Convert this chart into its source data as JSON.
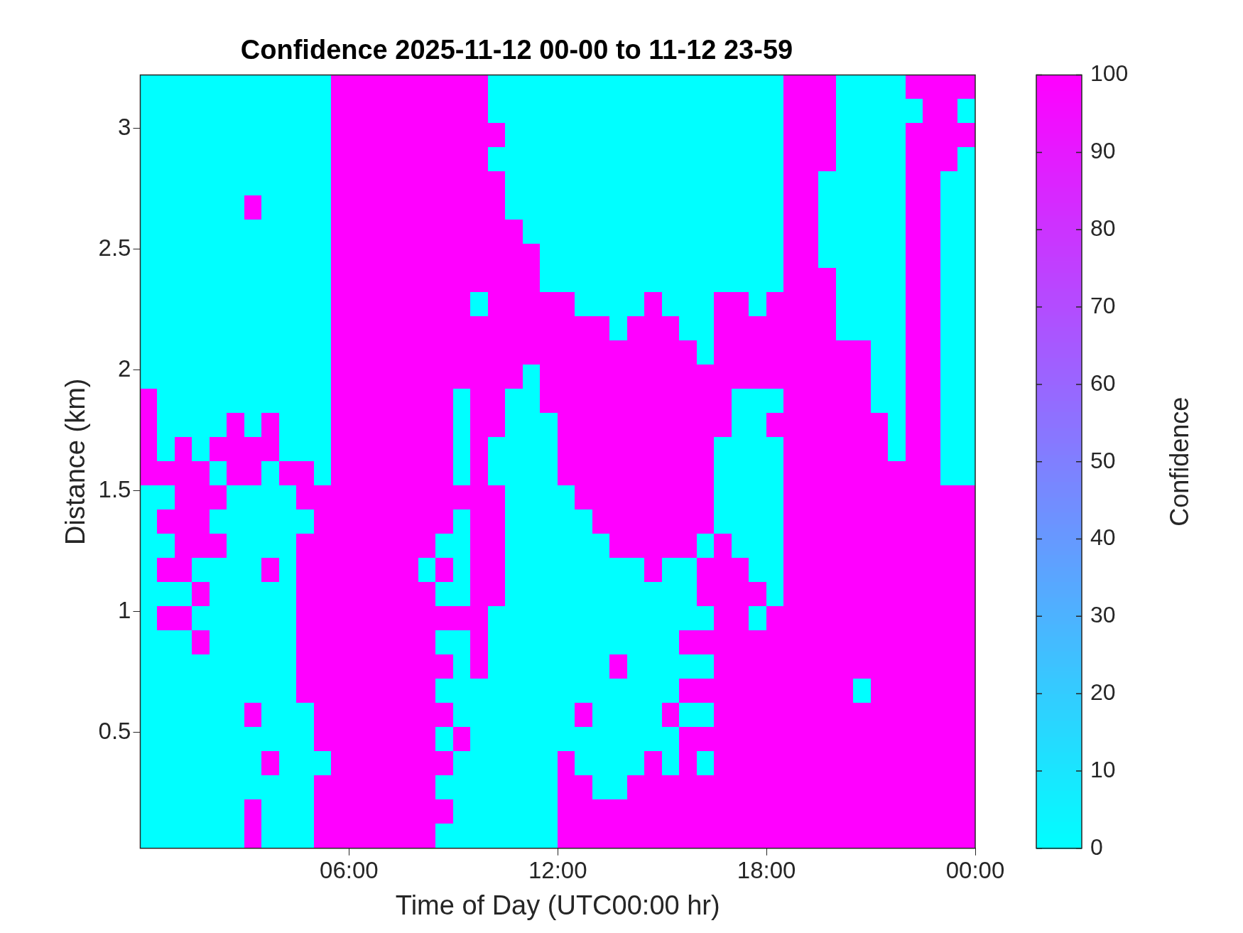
{
  "chart_data": {
    "type": "heatmap",
    "title": "Confidence 2025-11-12 00-00 to 11-12 23-59",
    "xlabel": "Time of Day (UTC00:00 hr)",
    "ylabel": "Distance (km)",
    "clabel": "Confidence",
    "x": [
      0.25,
      0.75,
      1.25,
      1.75,
      2.25,
      2.75,
      3.25,
      3.75,
      4.25,
      4.75,
      5.25,
      5.75,
      6.25,
      6.75,
      7.25,
      7.75,
      8.25,
      8.75,
      9.25,
      9.75,
      10.25,
      10.75,
      11.25,
      11.75,
      12.25,
      12.75,
      13.25,
      13.75,
      14.25,
      14.75,
      15.25,
      15.75,
      16.25,
      16.75,
      17.25,
      17.75,
      18.25,
      18.75,
      19.25,
      19.75,
      20.25,
      20.75,
      21.25,
      21.75,
      22.25,
      22.75,
      23.25,
      23.75
    ],
    "y": [
      3.17,
      3.07,
      2.97,
      2.87,
      2.77,
      2.67,
      2.57,
      2.47,
      2.37,
      2.27,
      2.17,
      2.07,
      1.97,
      1.87,
      1.77,
      1.67,
      1.57,
      1.47,
      1.37,
      1.27,
      1.17,
      1.07,
      0.97,
      0.87,
      0.77,
      0.67,
      0.57,
      0.47,
      0.37,
      0.27,
      0.17,
      0.07
    ],
    "xlim": [
      0,
      24
    ],
    "xticks": [
      {
        "value": 6,
        "label": "06:00"
      },
      {
        "value": 12,
        "label": "12:00"
      },
      {
        "value": 18,
        "label": "18:00"
      },
      {
        "value": 24,
        "label": "00:00"
      }
    ],
    "ylim": [
      0.02,
      3.22
    ],
    "yticks": [
      0.5,
      1,
      1.5,
      2,
      2.5,
      3
    ],
    "clim": [
      0,
      100
    ],
    "cticks": [
      0,
      10,
      20,
      30,
      40,
      50,
      60,
      70,
      80,
      90,
      100
    ],
    "cells": [
      [
        0,
        0,
        0,
        0,
        0,
        0,
        0,
        0,
        0,
        0,
        0,
        100,
        100,
        100,
        100,
        100,
        100,
        100,
        100,
        100,
        0,
        0,
        0,
        0,
        0,
        0,
        0,
        0,
        0,
        0,
        0,
        0,
        0,
        0,
        0,
        0,
        0,
        100,
        100,
        100,
        0,
        0,
        0,
        0,
        100,
        100,
        100,
        100
      ],
      [
        0,
        0,
        0,
        0,
        0,
        0,
        0,
        0,
        0,
        0,
        0,
        100,
        100,
        100,
        100,
        100,
        100,
        100,
        100,
        100,
        0,
        0,
        0,
        0,
        0,
        0,
        0,
        0,
        0,
        0,
        0,
        0,
        0,
        0,
        0,
        0,
        0,
        100,
        100,
        100,
        0,
        0,
        0,
        0,
        0,
        100,
        100,
        0
      ],
      [
        0,
        0,
        0,
        0,
        0,
        0,
        0,
        0,
        0,
        0,
        0,
        100,
        100,
        100,
        100,
        100,
        100,
        100,
        100,
        100,
        100,
        0,
        0,
        0,
        0,
        0,
        0,
        0,
        0,
        0,
        0,
        0,
        0,
        0,
        0,
        0,
        0,
        100,
        100,
        100,
        0,
        0,
        0,
        0,
        100,
        100,
        100,
        100
      ],
      [
        0,
        0,
        0,
        0,
        0,
        0,
        0,
        0,
        0,
        0,
        0,
        100,
        100,
        100,
        100,
        100,
        100,
        100,
        100,
        100,
        0,
        0,
        0,
        0,
        0,
        0,
        0,
        0,
        0,
        0,
        0,
        0,
        0,
        0,
        0,
        0,
        0,
        100,
        100,
        100,
        0,
        0,
        0,
        0,
        100,
        100,
        100,
        0
      ],
      [
        0,
        0,
        0,
        0,
        0,
        0,
        0,
        0,
        0,
        0,
        0,
        100,
        100,
        100,
        100,
        100,
        100,
        100,
        100,
        100,
        100,
        0,
        0,
        0,
        0,
        0,
        0,
        0,
        0,
        0,
        0,
        0,
        0,
        0,
        0,
        0,
        0,
        100,
        100,
        0,
        0,
        0,
        0,
        0,
        100,
        100,
        0,
        0
      ],
      [
        0,
        0,
        0,
        0,
        0,
        0,
        100,
        0,
        0,
        0,
        0,
        100,
        100,
        100,
        100,
        100,
        100,
        100,
        100,
        100,
        100,
        0,
        0,
        0,
        0,
        0,
        0,
        0,
        0,
        0,
        0,
        0,
        0,
        0,
        0,
        0,
        0,
        100,
        100,
        0,
        0,
        0,
        0,
        0,
        100,
        100,
        0,
        0
      ],
      [
        0,
        0,
        0,
        0,
        0,
        0,
        0,
        0,
        0,
        0,
        0,
        100,
        100,
        100,
        100,
        100,
        100,
        100,
        100,
        100,
        100,
        100,
        0,
        0,
        0,
        0,
        0,
        0,
        0,
        0,
        0,
        0,
        0,
        0,
        0,
        0,
        0,
        100,
        100,
        0,
        0,
        0,
        0,
        0,
        100,
        100,
        0,
        0
      ],
      [
        0,
        0,
        0,
        0,
        0,
        0,
        0,
        0,
        0,
        0,
        0,
        100,
        100,
        100,
        100,
        100,
        100,
        100,
        100,
        100,
        100,
        100,
        100,
        0,
        0,
        0,
        0,
        0,
        0,
        0,
        0,
        0,
        0,
        0,
        0,
        0,
        0,
        100,
        100,
        0,
        0,
        0,
        0,
        0,
        100,
        100,
        0,
        0
      ],
      [
        0,
        0,
        0,
        0,
        0,
        0,
        0,
        0,
        0,
        0,
        0,
        100,
        100,
        100,
        100,
        100,
        100,
        100,
        100,
        100,
        100,
        100,
        100,
        0,
        0,
        0,
        0,
        0,
        0,
        0,
        0,
        0,
        0,
        0,
        0,
        0,
        0,
        100,
        100,
        100,
        0,
        0,
        0,
        0,
        100,
        100,
        0,
        0
      ],
      [
        0,
        0,
        0,
        0,
        0,
        0,
        0,
        0,
        0,
        0,
        0,
        100,
        100,
        100,
        100,
        100,
        100,
        100,
        100,
        0,
        100,
        100,
        100,
        100,
        100,
        0,
        0,
        0,
        0,
        100,
        0,
        0,
        0,
        100,
        100,
        0,
        100,
        100,
        100,
        100,
        0,
        0,
        0,
        0,
        100,
        100,
        0,
        0
      ],
      [
        0,
        0,
        0,
        0,
        0,
        0,
        0,
        0,
        0,
        0,
        0,
        100,
        100,
        100,
        100,
        100,
        100,
        100,
        100,
        100,
        100,
        100,
        100,
        100,
        100,
        100,
        100,
        0,
        100,
        100,
        100,
        0,
        0,
        100,
        100,
        100,
        100,
        100,
        100,
        100,
        0,
        0,
        0,
        0,
        100,
        100,
        0,
        0
      ],
      [
        0,
        0,
        0,
        0,
        0,
        0,
        0,
        0,
        0,
        0,
        0,
        100,
        100,
        100,
        100,
        100,
        100,
        100,
        100,
        100,
        100,
        100,
        100,
        100,
        100,
        100,
        100,
        100,
        100,
        100,
        100,
        100,
        0,
        100,
        100,
        100,
        100,
        100,
        100,
        100,
        100,
        100,
        0,
        0,
        100,
        100,
        0,
        0
      ],
      [
        0,
        0,
        0,
        0,
        0,
        0,
        0,
        0,
        0,
        0,
        0,
        100,
        100,
        100,
        100,
        100,
        100,
        100,
        100,
        100,
        100,
        100,
        0,
        100,
        100,
        100,
        100,
        100,
        100,
        100,
        100,
        100,
        100,
        100,
        100,
        100,
        100,
        100,
        100,
        100,
        100,
        100,
        0,
        0,
        100,
        100,
        0,
        0
      ],
      [
        100,
        0,
        0,
        0,
        0,
        0,
        0,
        0,
        0,
        0,
        0,
        100,
        100,
        100,
        100,
        100,
        100,
        100,
        0,
        100,
        100,
        0,
        0,
        100,
        100,
        100,
        100,
        100,
        100,
        100,
        100,
        100,
        100,
        100,
        0,
        0,
        0,
        100,
        100,
        100,
        100,
        100,
        0,
        0,
        100,
        100,
        0,
        0
      ],
      [
        100,
        0,
        0,
        0,
        0,
        100,
        0,
        100,
        0,
        0,
        0,
        100,
        100,
        100,
        100,
        100,
        100,
        100,
        0,
        100,
        100,
        0,
        0,
        0,
        100,
        100,
        100,
        100,
        100,
        100,
        100,
        100,
        100,
        100,
        0,
        0,
        100,
        100,
        100,
        100,
        100,
        100,
        100,
        0,
        100,
        100,
        0,
        0
      ],
      [
        100,
        0,
        100,
        0,
        100,
        100,
        100,
        100,
        0,
        0,
        0,
        100,
        100,
        100,
        100,
        100,
        100,
        100,
        0,
        100,
        0,
        0,
        0,
        0,
        100,
        100,
        100,
        100,
        100,
        100,
        100,
        100,
        100,
        0,
        0,
        0,
        0,
        100,
        100,
        100,
        100,
        100,
        100,
        0,
        100,
        100,
        0,
        0
      ],
      [
        100,
        100,
        100,
        100,
        0,
        100,
        100,
        0,
        100,
        100,
        0,
        100,
        100,
        100,
        100,
        100,
        100,
        100,
        0,
        100,
        0,
        0,
        0,
        0,
        100,
        100,
        100,
        100,
        100,
        100,
        100,
        100,
        100,
        0,
        0,
        0,
        0,
        100,
        100,
        100,
        100,
        100,
        100,
        100,
        100,
        100,
        0,
        0
      ],
      [
        0,
        0,
        100,
        100,
        100,
        0,
        0,
        0,
        0,
        100,
        100,
        100,
        100,
        100,
        100,
        100,
        100,
        100,
        100,
        100,
        100,
        0,
        0,
        0,
        0,
        100,
        100,
        100,
        100,
        100,
        100,
        100,
        100,
        0,
        0,
        0,
        0,
        100,
        100,
        100,
        100,
        100,
        100,
        100,
        100,
        100,
        100,
        100
      ],
      [
        0,
        100,
        100,
        100,
        0,
        0,
        0,
        0,
        0,
        0,
        100,
        100,
        100,
        100,
        100,
        100,
        100,
        100,
        0,
        100,
        100,
        0,
        0,
        0,
        0,
        0,
        100,
        100,
        100,
        100,
        100,
        100,
        100,
        0,
        0,
        0,
        0,
        100,
        100,
        100,
        100,
        100,
        100,
        100,
        100,
        100,
        100,
        100
      ],
      [
        0,
        0,
        100,
        100,
        100,
        0,
        0,
        0,
        0,
        100,
        100,
        100,
        100,
        100,
        100,
        100,
        100,
        0,
        0,
        100,
        100,
        0,
        0,
        0,
        0,
        0,
        0,
        100,
        100,
        100,
        100,
        100,
        0,
        100,
        0,
        0,
        0,
        100,
        100,
        100,
        100,
        100,
        100,
        100,
        100,
        100,
        100,
        100
      ],
      [
        0,
        100,
        100,
        0,
        0,
        0,
        0,
        100,
        0,
        100,
        100,
        100,
        100,
        100,
        100,
        100,
        0,
        100,
        0,
        100,
        100,
        0,
        0,
        0,
        0,
        0,
        0,
        0,
        0,
        100,
        0,
        0,
        100,
        100,
        100,
        0,
        0,
        100,
        100,
        100,
        100,
        100,
        100,
        100,
        100,
        100,
        100,
        100
      ],
      [
        0,
        0,
        0,
        100,
        0,
        0,
        0,
        0,
        0,
        100,
        100,
        100,
        100,
        100,
        100,
        100,
        100,
        0,
        0,
        100,
        100,
        0,
        0,
        0,
        0,
        0,
        0,
        0,
        0,
        0,
        0,
        0,
        100,
        100,
        100,
        100,
        0,
        100,
        100,
        100,
        100,
        100,
        100,
        100,
        100,
        100,
        100,
        100
      ],
      [
        0,
        100,
        100,
        0,
        0,
        0,
        0,
        0,
        0,
        100,
        100,
        100,
        100,
        100,
        100,
        100,
        100,
        100,
        100,
        100,
        0,
        0,
        0,
        0,
        0,
        0,
        0,
        0,
        0,
        0,
        0,
        0,
        0,
        100,
        100,
        0,
        100,
        100,
        100,
        100,
        100,
        100,
        100,
        100,
        100,
        100,
        100,
        100
      ],
      [
        0,
        0,
        0,
        100,
        0,
        0,
        0,
        0,
        0,
        100,
        100,
        100,
        100,
        100,
        100,
        100,
        100,
        0,
        0,
        100,
        0,
        0,
        0,
        0,
        0,
        0,
        0,
        0,
        0,
        0,
        0,
        100,
        100,
        100,
        100,
        100,
        100,
        100,
        100,
        100,
        100,
        100,
        100,
        100,
        100,
        100,
        100,
        100
      ],
      [
        0,
        0,
        0,
        0,
        0,
        0,
        0,
        0,
        0,
        100,
        100,
        100,
        100,
        100,
        100,
        100,
        100,
        100,
        0,
        100,
        0,
        0,
        0,
        0,
        0,
        0,
        0,
        100,
        0,
        0,
        0,
        0,
        0,
        100,
        100,
        100,
        100,
        100,
        100,
        100,
        100,
        100,
        100,
        100,
        100,
        100,
        100,
        100
      ],
      [
        0,
        0,
        0,
        0,
        0,
        0,
        0,
        0,
        0,
        100,
        100,
        100,
        100,
        100,
        100,
        100,
        100,
        0,
        0,
        0,
        0,
        0,
        0,
        0,
        0,
        0,
        0,
        0,
        0,
        0,
        0,
        100,
        100,
        100,
        100,
        100,
        100,
        100,
        100,
        100,
        100,
        0,
        100,
        100,
        100,
        100,
        100,
        100
      ],
      [
        0,
        0,
        0,
        0,
        0,
        0,
        100,
        0,
        0,
        0,
        100,
        100,
        100,
        100,
        100,
        100,
        100,
        100,
        0,
        0,
        0,
        0,
        0,
        0,
        0,
        100,
        0,
        0,
        0,
        0,
        100,
        0,
        0,
        100,
        100,
        100,
        100,
        100,
        100,
        100,
        100,
        100,
        100,
        100,
        100,
        100,
        100,
        100
      ],
      [
        0,
        0,
        0,
        0,
        0,
        0,
        0,
        0,
        0,
        0,
        100,
        100,
        100,
        100,
        100,
        100,
        100,
        0,
        100,
        0,
        0,
        0,
        0,
        0,
        0,
        0,
        0,
        0,
        0,
        0,
        0,
        100,
        100,
        100,
        100,
        100,
        100,
        100,
        100,
        100,
        100,
        100,
        100,
        100,
        100,
        100,
        100,
        100
      ],
      [
        0,
        0,
        0,
        0,
        0,
        0,
        0,
        100,
        0,
        0,
        0,
        100,
        100,
        100,
        100,
        100,
        100,
        100,
        0,
        0,
        0,
        0,
        0,
        0,
        100,
        0,
        0,
        0,
        0,
        100,
        0,
        100,
        0,
        100,
        100,
        100,
        100,
        100,
        100,
        100,
        100,
        100,
        100,
        100,
        100,
        100,
        100,
        100
      ],
      [
        0,
        0,
        0,
        0,
        0,
        0,
        0,
        0,
        0,
        0,
        100,
        100,
        100,
        100,
        100,
        100,
        100,
        0,
        0,
        0,
        0,
        0,
        0,
        0,
        100,
        100,
        0,
        0,
        100,
        100,
        100,
        100,
        100,
        100,
        100,
        100,
        100,
        100,
        100,
        100,
        100,
        100,
        100,
        100,
        100,
        100,
        100,
        100
      ],
      [
        0,
        0,
        0,
        0,
        0,
        0,
        100,
        0,
        0,
        0,
        100,
        100,
        100,
        100,
        100,
        100,
        100,
        100,
        0,
        0,
        0,
        0,
        0,
        0,
        100,
        100,
        100,
        100,
        100,
        100,
        100,
        100,
        100,
        100,
        100,
        100,
        100,
        100,
        100,
        100,
        100,
        100,
        100,
        100,
        100,
        100,
        100,
        100
      ],
      [
        0,
        0,
        0,
        0,
        0,
        0,
        100,
        0,
        0,
        0,
        100,
        100,
        100,
        100,
        100,
        100,
        100,
        0,
        0,
        0,
        0,
        0,
        0,
        0,
        100,
        100,
        100,
        100,
        100,
        100,
        100,
        100,
        100,
        100,
        100,
        100,
        100,
        100,
        100,
        100,
        100,
        100,
        100,
        100,
        100,
        100,
        100,
        100
      ]
    ]
  }
}
